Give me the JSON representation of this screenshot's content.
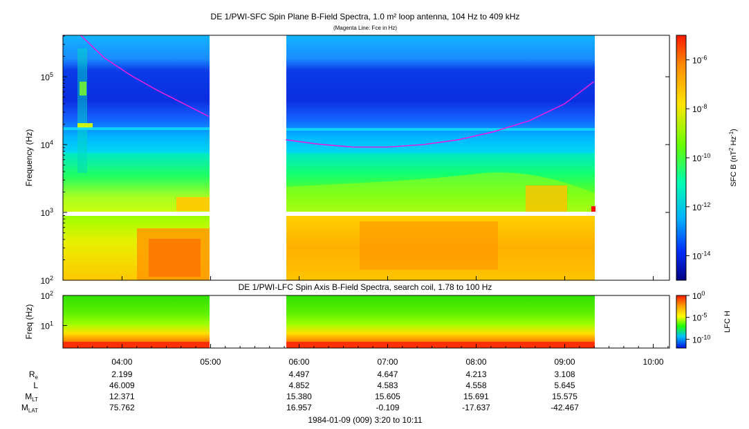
{
  "panels": {
    "sfc": {
      "title": "DE 1/PWI-SFC  Spin Plane B-Field Spectra, 1.0 m² loop antenna, 104 Hz to 409 kHz",
      "subtitle": "(Magenta Line: Fce in Hz)",
      "ylabel": "Frequency (Hz)",
      "ytick_labels": [
        "10",
        "10",
        "10",
        "10"
      ],
      "ytick_exps": [
        "2",
        "3",
        "4",
        "5"
      ],
      "colorbar_label": "SFC B (nT",
      "colorbar_label_exp1": "2",
      "colorbar_label_mid": " Hz",
      "colorbar_label_exp2": "-1",
      "colorbar_label_end": ")",
      "colorbar_tick_bases": [
        "10",
        "10",
        "10",
        "10",
        "10"
      ],
      "colorbar_tick_exps": [
        "-6",
        "-8",
        "-10",
        "-12",
        "-14"
      ]
    },
    "lfc": {
      "title": "DE 1/PWI-LFC  Spin Axis B-Field Spectra, search coil, 1.78 to 100 Hz",
      "ylabel": "Freq (Hz)",
      "ytick_labels": [
        "10",
        "10"
      ],
      "ytick_exps": [
        "1",
        "2"
      ],
      "colorbar_label": "LFC H",
      "colorbar_tick_bases": [
        "10",
        "10",
        "10"
      ],
      "colorbar_tick_exps": [
        "0",
        "-5",
        "-10"
      ]
    }
  },
  "time_axis": {
    "tick_labels": [
      "04:00",
      "05:00",
      "06:00",
      "07:00",
      "08:00",
      "09:00",
      "10:00"
    ],
    "ephemeris": [
      {
        "label": "R",
        "sub": "e",
        "values": [
          "2.199",
          "",
          "4.497",
          "4.647",
          "4.213",
          "3.108"
        ]
      },
      {
        "label": "L",
        "sub": "",
        "values": [
          "46.009",
          "",
          "4.852",
          "4.583",
          "4.558",
          "5.645"
        ]
      },
      {
        "label": "M",
        "sub": "LT",
        "values": [
          "12.371",
          "",
          "15.380",
          "15.605",
          "15.691",
          "15.575"
        ]
      },
      {
        "label": "M",
        "sub": "LAT",
        "values": [
          "75.762",
          "",
          "16.957",
          "-0.109",
          "-17.637",
          "-42.467"
        ]
      }
    ],
    "footer": "1984-01-09 (009) 3:20 to 10:11"
  },
  "chart_data": [
    {
      "type": "heatmap",
      "title": "DE 1/PWI-SFC  Spin Plane B-Field Spectra, 1.0 m² loop antenna, 104 Hz to 409 kHz",
      "xlabel": "",
      "ylabel": "Frequency (Hz)",
      "x_range_ut_hours": [
        3.333,
        10.183
      ],
      "y_range_hz": [
        100,
        409000
      ],
      "y_scale": "log",
      "colorbar": {
        "label": "SFC B (nT^2 Hz^-1)",
        "scale": "log",
        "range": [
          1e-15,
          1e-05
        ]
      },
      "data_gaps_ut_hours": [
        [
          5.0,
          5.85
        ],
        [
          9.35,
          10.183
        ]
      ],
      "fce_line": {
        "name": "Fce in Hz",
        "color": "#e020e0",
        "segments": [
          {
            "x": [
              3.5,
              3.8,
              4.1,
              4.4,
              4.7,
              4.98
            ],
            "y": [
              450000,
              190000,
              105000,
              63000,
              40000,
              26000
            ]
          },
          {
            "x": [
              5.85,
              6.2,
              6.6,
              7.0,
              7.4,
              7.8,
              8.2,
              8.6,
              9.0,
              9.33
            ],
            "y": [
              11800,
              10200,
              9200,
              9200,
              10000,
              11800,
              15500,
              22500,
              40000,
              85000
            ]
          }
        ]
      }
    },
    {
      "type": "heatmap",
      "title": "DE 1/PWI-LFC  Spin Axis B-Field Spectra, search coil, 1.78 to 100 Hz",
      "ylabel": "Freq (Hz)",
      "x_range_ut_hours": [
        3.333,
        10.183
      ],
      "y_range_hz": [
        1.78,
        100
      ],
      "y_scale": "log",
      "colorbar": {
        "label": "LFC H",
        "scale": "log",
        "range": [
          1e-12,
          1
        ]
      },
      "data_gaps_ut_hours": [
        [
          5.0,
          5.85
        ],
        [
          9.35,
          10.183
        ]
      ]
    }
  ],
  "colors": {
    "fce_line": "#e020e0"
  }
}
